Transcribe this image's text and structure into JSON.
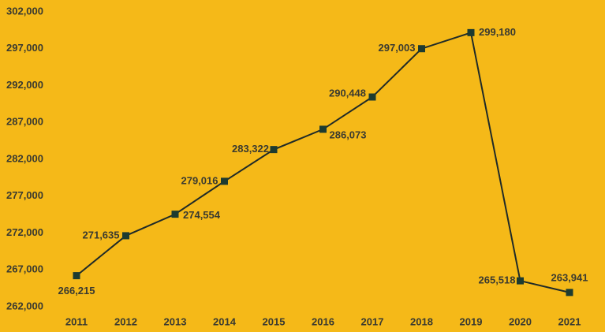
{
  "chart_data": {
    "type": "line",
    "categories": [
      "2011",
      "2012",
      "2013",
      "2014",
      "2015",
      "2016",
      "2017",
      "2018",
      "2019",
      "2020",
      "2021"
    ],
    "series": [
      {
        "color": "#1d3b30",
        "values": [
          266215,
          271635,
          274554,
          279016,
          283322,
          286073,
          290448,
          297003,
          299180,
          265518,
          263941
        ],
        "value_labels": [
          "266,215",
          "271,635",
          "274,554",
          "279,016",
          "283,322",
          "286,073",
          "290,448",
          "297,003",
          "299,180",
          "265,518",
          "263,941"
        ]
      }
    ],
    "ylim": [
      262000,
      302000
    ],
    "yticks": [
      {
        "value": 262000,
        "label": "262,000"
      },
      {
        "value": 267000,
        "label": "267,000"
      },
      {
        "value": 272000,
        "label": "272,000"
      },
      {
        "value": 277000,
        "label": "277,000"
      },
      {
        "value": 282000,
        "label": "282,000"
      },
      {
        "value": 287000,
        "label": "287,000"
      },
      {
        "value": 292000,
        "label": "292,000"
      },
      {
        "value": 297000,
        "label": "297,000"
      },
      {
        "value": 302000,
        "label": "302,000"
      }
    ],
    "grid": false
  }
}
